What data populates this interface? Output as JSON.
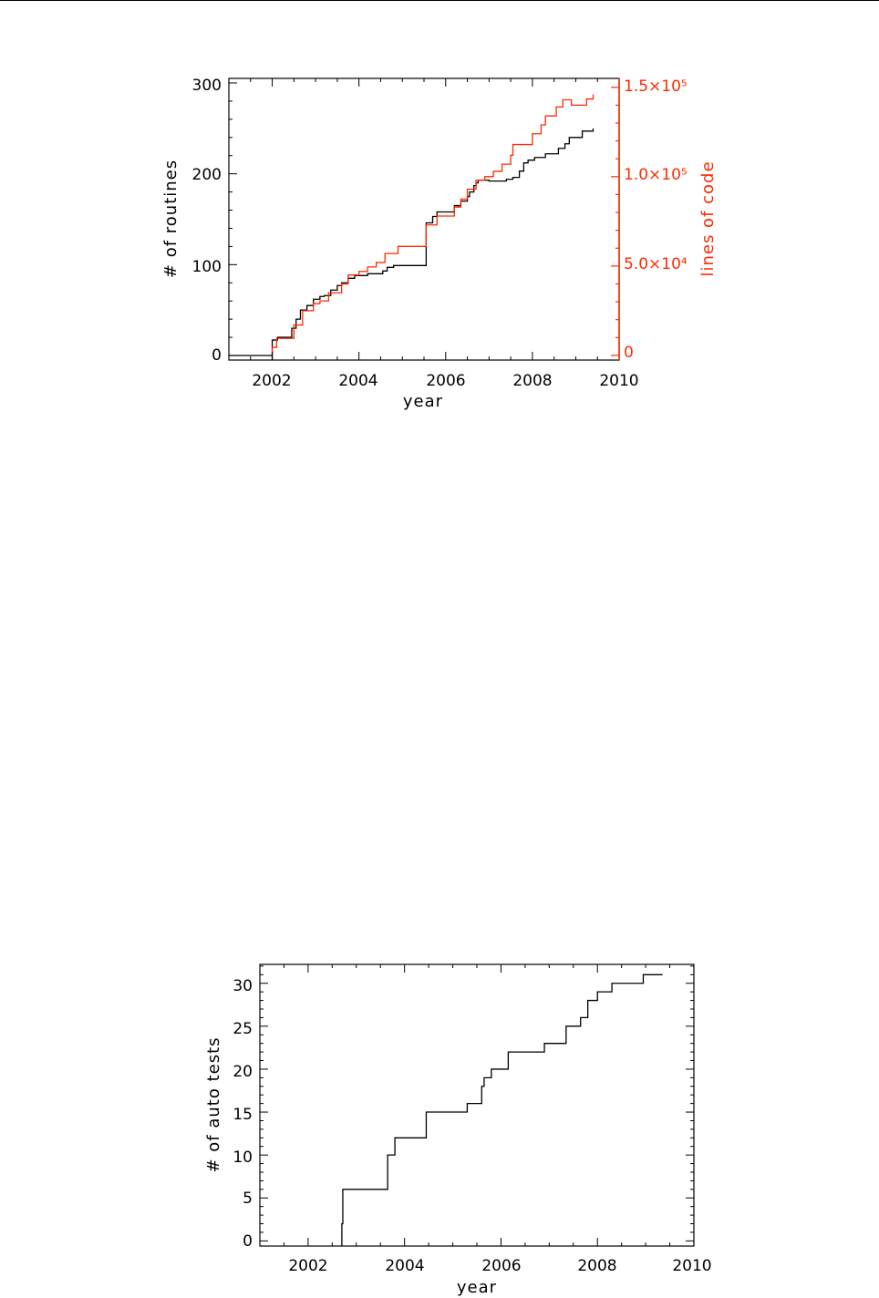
{
  "colors": {
    "black": "#000000",
    "red": "#ff2a00",
    "background": "#ffffff"
  },
  "chart_data": [
    {
      "type": "line",
      "xlabel": "year",
      "ylabel": "# of routines",
      "y2label": "lines of code",
      "xlim": [
        2001,
        2010
      ],
      "ylim": [
        -5,
        305
      ],
      "y2lim": [
        -2600,
        155000
      ],
      "x_ticks": [
        "2002",
        "2004",
        "2006",
        "2008",
        "2010"
      ],
      "y_ticks": [
        "0",
        "100",
        "200",
        "300"
      ],
      "y2_ticks": [
        "0",
        "5.0×10⁴",
        "1.0×10⁵",
        "1.5×10⁵"
      ],
      "series": [
        {
          "axis": "left",
          "color": "#000000",
          "x": [
            2002.0,
            2002.12,
            2002.45,
            2002.55,
            2002.65,
            2002.8,
            2002.95,
            2003.1,
            2003.2,
            2003.35,
            2003.5,
            2003.6,
            2003.75,
            2003.9,
            2004.2,
            2004.55,
            2004.65,
            2004.8,
            2005.5,
            2005.55,
            2005.7,
            2005.8,
            2006.2,
            2006.35,
            2006.5,
            2006.55,
            2006.65,
            2006.7,
            2006.75,
            2007.0,
            2007.4,
            2007.55,
            2007.7,
            2007.8,
            2007.9,
            2008.05,
            2008.3,
            2008.6,
            2008.75,
            2008.85,
            2009.15,
            2009.4
          ],
          "y": [
            17,
            20,
            30,
            40,
            50,
            55,
            62,
            65,
            66,
            72,
            77,
            80,
            85,
            88,
            90,
            93,
            97,
            99,
            99,
            146,
            153,
            158,
            165,
            170,
            175,
            180,
            187,
            190,
            193,
            192,
            194,
            196,
            203,
            212,
            215,
            218,
            222,
            228,
            233,
            240,
            247,
            250
          ]
        },
        {
          "axis": "right",
          "color": "#ff2a00",
          "x": [
            2002.0,
            2002.1,
            2002.5,
            2002.7,
            2002.95,
            2003.1,
            2003.3,
            2003.6,
            2003.75,
            2004.0,
            2004.2,
            2004.4,
            2004.6,
            2004.9,
            2005.5,
            2005.55,
            2005.8,
            2006.2,
            2006.35,
            2006.5,
            2006.7,
            2006.9,
            2007.1,
            2007.3,
            2007.5,
            2007.55,
            2008.0,
            2008.2,
            2008.3,
            2008.55,
            2008.7,
            2008.9,
            2009.25,
            2009.4
          ],
          "y": [
            4500,
            9500,
            17000,
            25000,
            29000,
            30500,
            35000,
            40000,
            45000,
            47000,
            49500,
            52000,
            57000,
            61000,
            61000,
            73000,
            78000,
            83000,
            87500,
            93000,
            98000,
            100000,
            103000,
            107000,
            112000,
            118000,
            124000,
            129000,
            134000,
            139000,
            143000,
            140000,
            143500,
            146000
          ]
        }
      ]
    },
    {
      "type": "line",
      "xlabel": "year",
      "ylabel": "# of auto tests",
      "xlim": [
        2001,
        2010
      ],
      "ylim": [
        -0.6,
        32.2
      ],
      "x_ticks": [
        "2002",
        "2004",
        "2006",
        "2008",
        "2010"
      ],
      "y_ticks": [
        "0",
        "5",
        "10",
        "15",
        "20",
        "25",
        "30"
      ],
      "series": [
        {
          "color": "#000000",
          "x": [
            2002.7,
            2002.72,
            2003.65,
            2003.8,
            2004.45,
            2005.3,
            2005.6,
            2005.65,
            2005.8,
            2006.15,
            2006.9,
            2007.35,
            2007.65,
            2007.8,
            2008.0,
            2008.3,
            2008.95,
            2009.35
          ],
          "y": [
            2,
            6,
            10,
            12,
            15,
            16,
            18,
            19,
            20,
            22,
            23,
            25,
            26,
            28,
            29,
            30,
            31,
            31
          ]
        }
      ]
    }
  ]
}
